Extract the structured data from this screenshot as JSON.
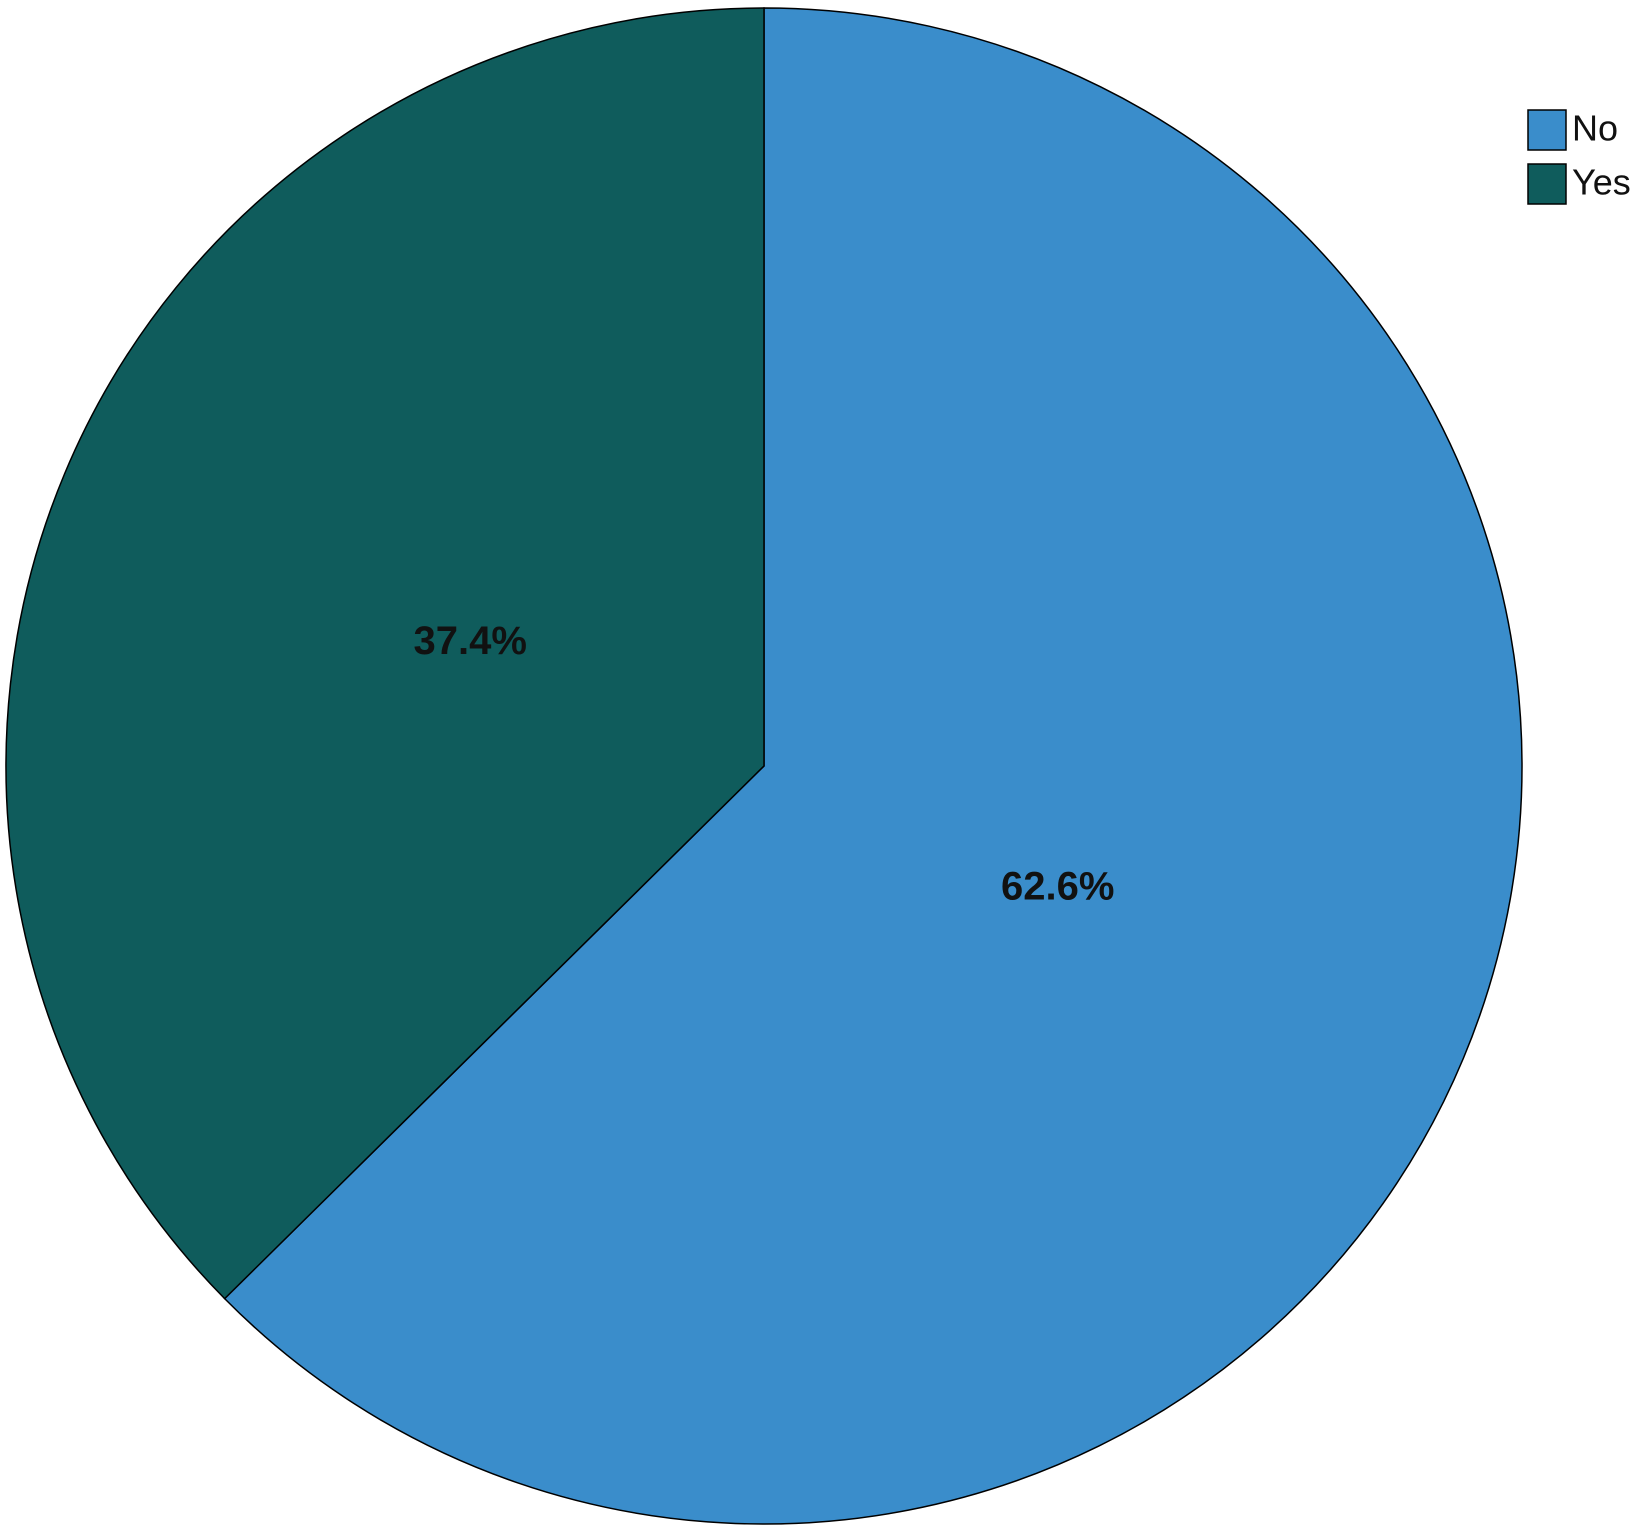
{
  "chart_data": {
    "type": "pie",
    "categories": [
      "No",
      "Yes"
    ],
    "values": [
      62.6,
      37.4
    ],
    "value_labels": [
      "62.6%",
      "37.4%"
    ],
    "colors": [
      "#3a8dcb",
      "#0f5c5c"
    ],
    "legend": "top-right"
  }
}
